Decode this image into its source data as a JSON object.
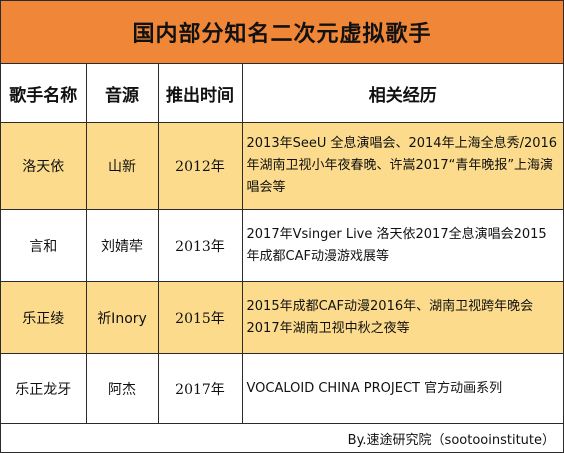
{
  "title": "国内部分知名二次元虚拟歌手",
  "headers": {
    "name": "歌手名称",
    "voice": "音源",
    "year": "推出时间",
    "exp": "相关经历"
  },
  "rows": [
    {
      "name": "洛天依",
      "voice": "山新",
      "year": "2012年",
      "exp": "2013年SeeU 全息演唱会、2014年上海全息秀/2016年湖南卫视小年夜春晚、许嵩2017“青年晚报”上海演唱会等",
      "highlight": true
    },
    {
      "name": "言和",
      "voice": "刘婧荦",
      "year": "2013年",
      "exp": "2017年Vsinger Live 洛天依2017全息演唱会2015年成都CAF动漫游戏展等",
      "highlight": false
    },
    {
      "name": "乐正绫",
      "voice": "祈Inory",
      "year": "2015年",
      "exp": "2015年成都CAF动漫2016年、湖南卫视跨年晚会2017年湖南卫视中秋之夜等",
      "highlight": true
    },
    {
      "name": "乐正龙牙",
      "voice": "阿杰",
      "year": "2017年",
      "exp": "VOCALOID CHINA PROJECT 官方动画系列",
      "highlight": false
    }
  ],
  "footer": "By.速途研究院（sootooinstitute）",
  "colors": {
    "title_bg": "#ef8638",
    "highlight_row": "#fcdc8c",
    "border": "#2b2b2b"
  }
}
